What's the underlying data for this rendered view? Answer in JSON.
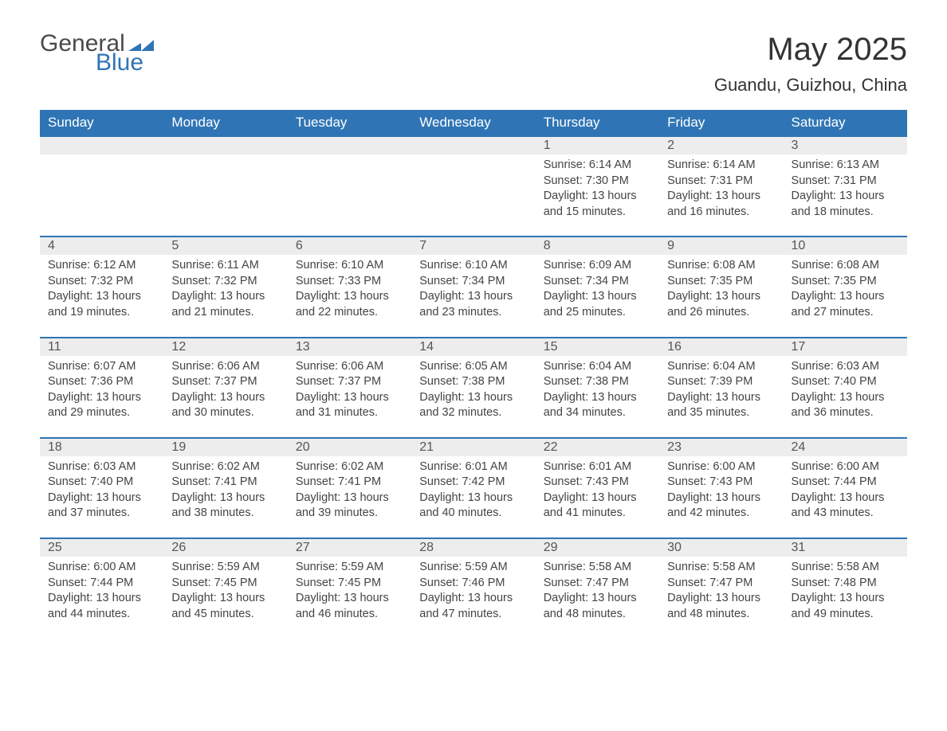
{
  "brand": {
    "word1": "General",
    "word2": "Blue",
    "accent_color": "#2f75b5",
    "text_color": "#4a4a4a"
  },
  "title": {
    "month_year": "May 2025",
    "location": "Guandu, Guizhou, China"
  },
  "calendar": {
    "type": "table",
    "columns": [
      "Sunday",
      "Monday",
      "Tuesday",
      "Wednesday",
      "Thursday",
      "Friday",
      "Saturday"
    ],
    "header_bg": "#2f75b5",
    "header_fg": "#ffffff",
    "row_divider_color": "#2f75b5",
    "daynum_bg": "#ededed",
    "text_color": "#444444",
    "background_color": "#ffffff",
    "header_fontsize": 17,
    "body_fontsize": 14.5,
    "weeks": [
      [
        null,
        null,
        null,
        null,
        {
          "n": "1",
          "sunrise": "6:14 AM",
          "sunset": "7:30 PM",
          "dl": "13 hours and 15 minutes."
        },
        {
          "n": "2",
          "sunrise": "6:14 AM",
          "sunset": "7:31 PM",
          "dl": "13 hours and 16 minutes."
        },
        {
          "n": "3",
          "sunrise": "6:13 AM",
          "sunset": "7:31 PM",
          "dl": "13 hours and 18 minutes."
        }
      ],
      [
        {
          "n": "4",
          "sunrise": "6:12 AM",
          "sunset": "7:32 PM",
          "dl": "13 hours and 19 minutes."
        },
        {
          "n": "5",
          "sunrise": "6:11 AM",
          "sunset": "7:32 PM",
          "dl": "13 hours and 21 minutes."
        },
        {
          "n": "6",
          "sunrise": "6:10 AM",
          "sunset": "7:33 PM",
          "dl": "13 hours and 22 minutes."
        },
        {
          "n": "7",
          "sunrise": "6:10 AM",
          "sunset": "7:34 PM",
          "dl": "13 hours and 23 minutes."
        },
        {
          "n": "8",
          "sunrise": "6:09 AM",
          "sunset": "7:34 PM",
          "dl": "13 hours and 25 minutes."
        },
        {
          "n": "9",
          "sunrise": "6:08 AM",
          "sunset": "7:35 PM",
          "dl": "13 hours and 26 minutes."
        },
        {
          "n": "10",
          "sunrise": "6:08 AM",
          "sunset": "7:35 PM",
          "dl": "13 hours and 27 minutes."
        }
      ],
      [
        {
          "n": "11",
          "sunrise": "6:07 AM",
          "sunset": "7:36 PM",
          "dl": "13 hours and 29 minutes."
        },
        {
          "n": "12",
          "sunrise": "6:06 AM",
          "sunset": "7:37 PM",
          "dl": "13 hours and 30 minutes."
        },
        {
          "n": "13",
          "sunrise": "6:06 AM",
          "sunset": "7:37 PM",
          "dl": "13 hours and 31 minutes."
        },
        {
          "n": "14",
          "sunrise": "6:05 AM",
          "sunset": "7:38 PM",
          "dl": "13 hours and 32 minutes."
        },
        {
          "n": "15",
          "sunrise": "6:04 AM",
          "sunset": "7:38 PM",
          "dl": "13 hours and 34 minutes."
        },
        {
          "n": "16",
          "sunrise": "6:04 AM",
          "sunset": "7:39 PM",
          "dl": "13 hours and 35 minutes."
        },
        {
          "n": "17",
          "sunrise": "6:03 AM",
          "sunset": "7:40 PM",
          "dl": "13 hours and 36 minutes."
        }
      ],
      [
        {
          "n": "18",
          "sunrise": "6:03 AM",
          "sunset": "7:40 PM",
          "dl": "13 hours and 37 minutes."
        },
        {
          "n": "19",
          "sunrise": "6:02 AM",
          "sunset": "7:41 PM",
          "dl": "13 hours and 38 minutes."
        },
        {
          "n": "20",
          "sunrise": "6:02 AM",
          "sunset": "7:41 PM",
          "dl": "13 hours and 39 minutes."
        },
        {
          "n": "21",
          "sunrise": "6:01 AM",
          "sunset": "7:42 PM",
          "dl": "13 hours and 40 minutes."
        },
        {
          "n": "22",
          "sunrise": "6:01 AM",
          "sunset": "7:43 PM",
          "dl": "13 hours and 41 minutes."
        },
        {
          "n": "23",
          "sunrise": "6:00 AM",
          "sunset": "7:43 PM",
          "dl": "13 hours and 42 minutes."
        },
        {
          "n": "24",
          "sunrise": "6:00 AM",
          "sunset": "7:44 PM",
          "dl": "13 hours and 43 minutes."
        }
      ],
      [
        {
          "n": "25",
          "sunrise": "6:00 AM",
          "sunset": "7:44 PM",
          "dl": "13 hours and 44 minutes."
        },
        {
          "n": "26",
          "sunrise": "5:59 AM",
          "sunset": "7:45 PM",
          "dl": "13 hours and 45 minutes."
        },
        {
          "n": "27",
          "sunrise": "5:59 AM",
          "sunset": "7:45 PM",
          "dl": "13 hours and 46 minutes."
        },
        {
          "n": "28",
          "sunrise": "5:59 AM",
          "sunset": "7:46 PM",
          "dl": "13 hours and 47 minutes."
        },
        {
          "n": "29",
          "sunrise": "5:58 AM",
          "sunset": "7:47 PM",
          "dl": "13 hours and 48 minutes."
        },
        {
          "n": "30",
          "sunrise": "5:58 AM",
          "sunset": "7:47 PM",
          "dl": "13 hours and 48 minutes."
        },
        {
          "n": "31",
          "sunrise": "5:58 AM",
          "sunset": "7:48 PM",
          "dl": "13 hours and 49 minutes."
        }
      ]
    ],
    "labels": {
      "sunrise": "Sunrise",
      "sunset": "Sunset",
      "daylight": "Daylight"
    }
  }
}
